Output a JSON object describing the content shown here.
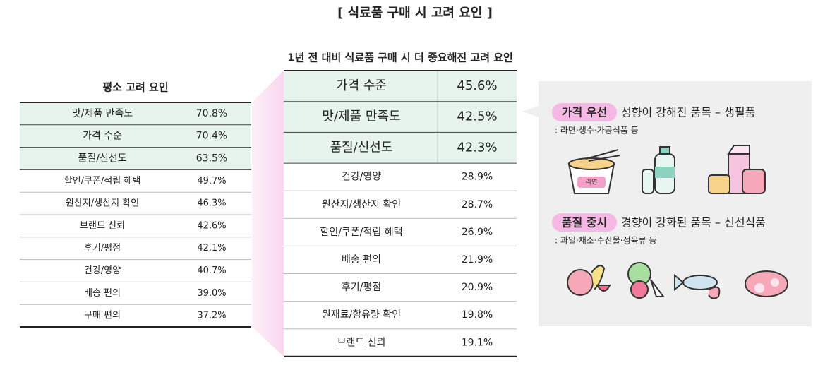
{
  "title": "[ 식료품 구매 시 고려 요인 ]",
  "usual": {
    "title": "평소 고려 요인",
    "highlight_rows": 3,
    "rows": [
      [
        "맛/제품 만족도",
        "70.8%"
      ],
      [
        "가격 수준",
        "70.4%"
      ],
      [
        "품질/신선도",
        "63.5%"
      ],
      [
        "할인/쿠폰/적립 혜택",
        "49.7%"
      ],
      [
        "원산지/생산지 확인",
        "46.3%"
      ],
      [
        "브랜드 신뢰",
        "42.6%"
      ],
      [
        "후기/평점",
        "42.1%"
      ],
      [
        "건강/영양",
        "40.7%"
      ],
      [
        "배송 편의",
        "39.0%"
      ],
      [
        "구매 편의",
        "37.2%"
      ]
    ]
  },
  "more_important": {
    "title": "1년 전 대비 식료품 구매 시 더 중요해진 고려 요인",
    "highlight_rows": 3,
    "rows": [
      [
        "가격 수준",
        "45.6%"
      ],
      [
        "맛/제품 만족도",
        "42.5%"
      ],
      [
        "품질/신선도",
        "42.3%"
      ],
      [
        "건강/영양",
        "28.9%"
      ],
      [
        "원산지/생산지 확인",
        "28.7%"
      ],
      [
        "할인/쿠폰/적립 혜택",
        "26.9%"
      ],
      [
        "배송 편의",
        "21.9%"
      ],
      [
        "후기/평점",
        "20.9%"
      ],
      [
        "원재료/함유량 확인",
        "19.8%"
      ],
      [
        "브랜드 신뢰",
        "19.1%"
      ]
    ]
  },
  "panel": {
    "sections": [
      {
        "highlight": "가격 우선",
        "heading": "성향이 강해진 품목 – 생필품",
        "note": ": 라면·생수·가공식품 등",
        "icon_label": "라면"
      },
      {
        "highlight": "품질 중시",
        "heading": "경향이 강화된 품목 – 신선식품",
        "note": ": 과일·채소·수산물·정육류 등"
      }
    ]
  }
}
